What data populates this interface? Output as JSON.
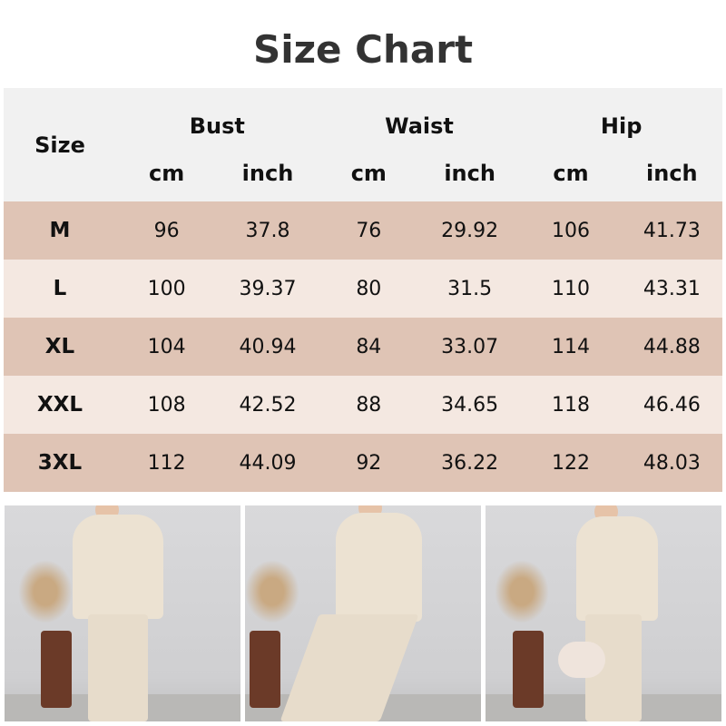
{
  "title": "Size Chart",
  "table": {
    "size_header": "Size",
    "groups": [
      "Bust",
      "Waist",
      "Hip"
    ],
    "units": [
      "cm",
      "inch",
      "cm",
      "inch",
      "cm",
      "inch"
    ],
    "rows": [
      {
        "size": "M",
        "values": [
          "96",
          "37.8",
          "76",
          "29.92",
          "106",
          "41.73"
        ]
      },
      {
        "size": "L",
        "values": [
          "100",
          "39.37",
          "80",
          "31.5",
          "110",
          "43.31"
        ]
      },
      {
        "size": "XL",
        "values": [
          "104",
          "40.94",
          "84",
          "33.07",
          "114",
          "44.88"
        ]
      },
      {
        "size": "XXL",
        "values": [
          "108",
          "42.52",
          "88",
          "34.65",
          "118",
          "46.46"
        ]
      },
      {
        "size": "3XL",
        "values": [
          "112",
          "44.09",
          "92",
          "36.22",
          "122",
          "48.03"
        ]
      }
    ]
  },
  "colors": {
    "header_bg": "#f1f1f1",
    "row_dark": "#dfc4b5",
    "row_light": "#f4e8e1",
    "title": "#333333"
  }
}
